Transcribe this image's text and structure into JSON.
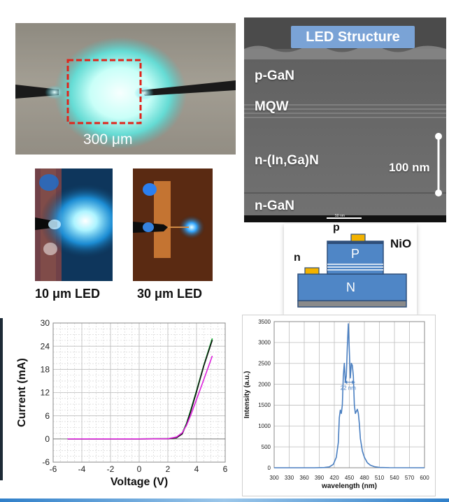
{
  "led_photo": {
    "scale_label": "300 μm"
  },
  "tem": {
    "title": "LED Structure",
    "layers": [
      "p-GaN",
      "MQW",
      "n-(In,Ga)N",
      "n-GaN"
    ],
    "scale_bar_label": "100 nm",
    "small_scale_label": "50 nm"
  },
  "small_leds": [
    {
      "caption": "10 μm LED"
    },
    {
      "caption": "30 μm LED"
    }
  ],
  "schematic": {
    "p_contact_label": "p",
    "n_contact_label": "n",
    "oxide_label": "NiO",
    "p_region_label": "P",
    "n_region_label": "N",
    "colors": {
      "body": "#4f86c6",
      "edge": "#2f4f7a",
      "contact": "#f2b200",
      "base": "#8a8a8a"
    }
  },
  "chart_data": [
    {
      "type": "line",
      "xlabel": "Voltage (V)",
      "ylabel": "Current (mA)",
      "xlim": [
        -6,
        6
      ],
      "ylim": [
        -6,
        30
      ],
      "xticks": [
        -6,
        -4,
        -2,
        0,
        2,
        4,
        6
      ],
      "yticks": [
        -6,
        0,
        6,
        12,
        18,
        24,
        30
      ],
      "grid": true,
      "series": [
        {
          "color": "#00aa22",
          "x": [
            -5,
            -2,
            0,
            2,
            2.6,
            3.0,
            3.3,
            3.6,
            4.0,
            4.5,
            5.1
          ],
          "y": [
            0,
            0,
            0,
            0.05,
            0.4,
            1.5,
            4.0,
            7.5,
            12.5,
            19.0,
            26.0
          ]
        },
        {
          "color": "#111111",
          "x": [
            -5,
            -2,
            0,
            2,
            2.6,
            3.0,
            3.3,
            3.6,
            4.0,
            4.5,
            5.1
          ],
          "y": [
            0,
            0,
            0,
            0.04,
            0.3,
            1.3,
            3.8,
            7.2,
            12.2,
            18.8,
            25.6
          ]
        },
        {
          "color": "#dd22dd",
          "x": [
            -5,
            -2,
            0,
            2,
            2.6,
            3.0,
            3.3,
            3.6,
            4.0,
            4.5,
            5.1
          ],
          "y": [
            0,
            0,
            0,
            0.05,
            0.5,
            1.6,
            3.5,
            6.2,
            10.2,
            15.3,
            21.5
          ]
        }
      ]
    },
    {
      "type": "line",
      "xlabel": "wavelength (nm)",
      "ylabel": "Intensity (a.u.)",
      "xlim": [
        300,
        600
      ],
      "ylim": [
        0,
        3500
      ],
      "xticks": [
        300,
        330,
        360,
        390,
        420,
        450,
        480,
        510,
        540,
        570,
        600
      ],
      "yticks": [
        0,
        500,
        1000,
        1500,
        2000,
        2500,
        3000,
        3500
      ],
      "grid": true,
      "annotation": "22 nm",
      "series": [
        {
          "color": "#4a7fc1",
          "x": [
            300,
            380,
            400,
            410,
            418,
            424,
            428,
            430,
            432,
            434,
            436,
            438,
            440,
            442,
            444,
            446,
            448,
            450,
            452,
            454,
            456,
            458,
            460,
            462,
            464,
            466,
            468,
            470,
            472,
            476,
            480,
            486,
            492,
            500,
            510,
            530,
            600
          ],
          "y": [
            0,
            0,
            5,
            20,
            80,
            250,
            600,
            1200,
            1380,
            1300,
            1500,
            2200,
            2500,
            2050,
            2200,
            2900,
            3450,
            2800,
            2150,
            2500,
            2450,
            2200,
            1500,
            1300,
            1350,
            1400,
            1300,
            1050,
            700,
            400,
            250,
            120,
            60,
            25,
            8,
            2,
            0
          ]
        }
      ]
    }
  ]
}
